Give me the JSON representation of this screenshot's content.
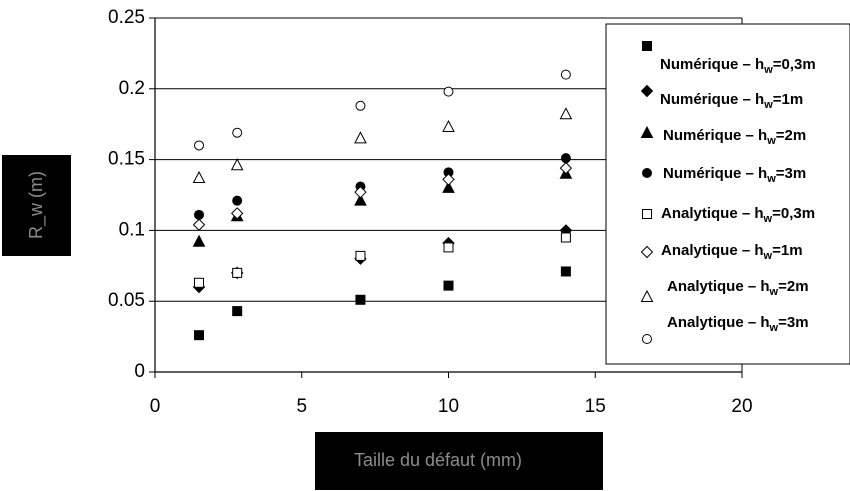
{
  "chart_data": {
    "type": "scatter",
    "xlabel": "Taille du défaut (mm)",
    "ylabel": "R_w (m)",
    "xlim": [
      0,
      20
    ],
    "ylim": [
      0,
      0.25
    ],
    "x_ticks": [
      "0",
      "5",
      "10",
      "15",
      "20"
    ],
    "y_ticks": [
      "0",
      "0.05",
      "0.1",
      "0.15",
      "0.2",
      "0.25"
    ],
    "grid": "horizontal",
    "legend_position": "right",
    "series": [
      {
        "name": "Numérique – hw=0,3m",
        "legend_prefix": "Numérique – h",
        "legend_sub": "w",
        "legend_suffix": "=0,3m",
        "marker": "square",
        "filled": true,
        "x": [
          1.5,
          2.8,
          7,
          10,
          14
        ],
        "y": [
          0.026,
          0.043,
          0.051,
          0.061,
          0.071
        ]
      },
      {
        "name": "Numérique – hw=1m",
        "legend_prefix": "Numérique – h",
        "legend_sub": "w",
        "legend_suffix": "=1m",
        "marker": "diamond",
        "filled": true,
        "x": [
          1.5,
          2.8,
          7,
          10,
          14
        ],
        "y": [
          0.06,
          0.07,
          0.08,
          0.091,
          0.1
        ]
      },
      {
        "name": "Numérique – hw=2m",
        "legend_prefix": "Numérique – h",
        "legend_sub": "w",
        "legend_suffix": "=2m",
        "marker": "triangle",
        "filled": true,
        "x": [
          1.5,
          2.8,
          7,
          10,
          14
        ],
        "y": [
          0.092,
          0.11,
          0.121,
          0.13,
          0.14
        ]
      },
      {
        "name": "Numérique – hw=3m",
        "legend_prefix": "Numérique – h",
        "legend_sub": "w",
        "legend_suffix": "=3m",
        "marker": "circle",
        "filled": true,
        "x": [
          1.5,
          2.8,
          7,
          10,
          14
        ],
        "y": [
          0.111,
          0.121,
          0.131,
          0.141,
          0.151
        ]
      },
      {
        "name": "Analytique – hw=0,3m",
        "legend_prefix": "Analytique – h",
        "legend_sub": "w",
        "legend_suffix": "=0,3m",
        "marker": "square",
        "filled": false,
        "x": [
          1.5,
          2.8,
          7,
          10,
          14
        ],
        "y": [
          0.063,
          0.07,
          0.082,
          0.088,
          0.095
        ]
      },
      {
        "name": "Analytique – hw=1m",
        "legend_prefix": "Analytique – h",
        "legend_sub": "w",
        "legend_suffix": "=1m",
        "marker": "diamond",
        "filled": false,
        "x": [
          1.5,
          2.8,
          7,
          10,
          14
        ],
        "y": [
          0.104,
          0.112,
          0.127,
          0.136,
          0.144
        ]
      },
      {
        "name": "Analytique – hw=2m",
        "legend_prefix": "Analytique – h",
        "legend_sub": "w",
        "legend_suffix": "=2m",
        "marker": "triangle",
        "filled": false,
        "x": [
          1.5,
          2.8,
          7,
          10,
          14
        ],
        "y": [
          0.137,
          0.146,
          0.165,
          0.173,
          0.182
        ]
      },
      {
        "name": "Analytique – hw=3m",
        "legend_prefix": "Analytique – h",
        "legend_sub": "w",
        "legend_suffix": "=3m",
        "marker": "circle",
        "filled": false,
        "x": [
          1.5,
          2.8,
          7,
          10,
          14
        ],
        "y": [
          0.16,
          0.169,
          0.188,
          0.198,
          0.21
        ]
      }
    ]
  }
}
